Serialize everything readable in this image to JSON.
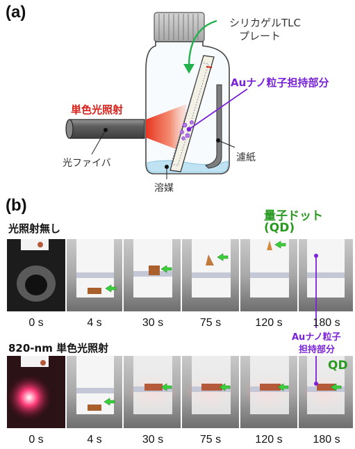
{
  "panel_a": {
    "label": "(a)",
    "tlc_label_1": "シリカゲルTLC",
    "tlc_label_2": "プレート",
    "au_label": "Auナノ粒子担持部分",
    "light_label": "単色光照射",
    "fiber_label": "光ファイバ",
    "filter_label": "濾紙",
    "solvent_label": "溶媒",
    "colors": {
      "light": "#e8331f",
      "arrow": "#22b14c",
      "au": "#8a2be2"
    }
  },
  "panel_b": {
    "label": "(b)",
    "row1_title": "光照射無し",
    "row2_title": "820-nm 単色光照射",
    "qd_label_1": "量子ドット",
    "qd_label_2": "(QD)",
    "qd_short": "QD",
    "au_label_1": "Auナノ粒子",
    "au_label_2": "担持部分",
    "times_row1": [
      "0 s",
      "4 s",
      "30 s",
      "75 s",
      "120 s",
      "180 s"
    ],
    "times_row2": [
      "0 s",
      "4 s",
      "30 s",
      "75 s",
      "120 s",
      "180 s"
    ]
  }
}
